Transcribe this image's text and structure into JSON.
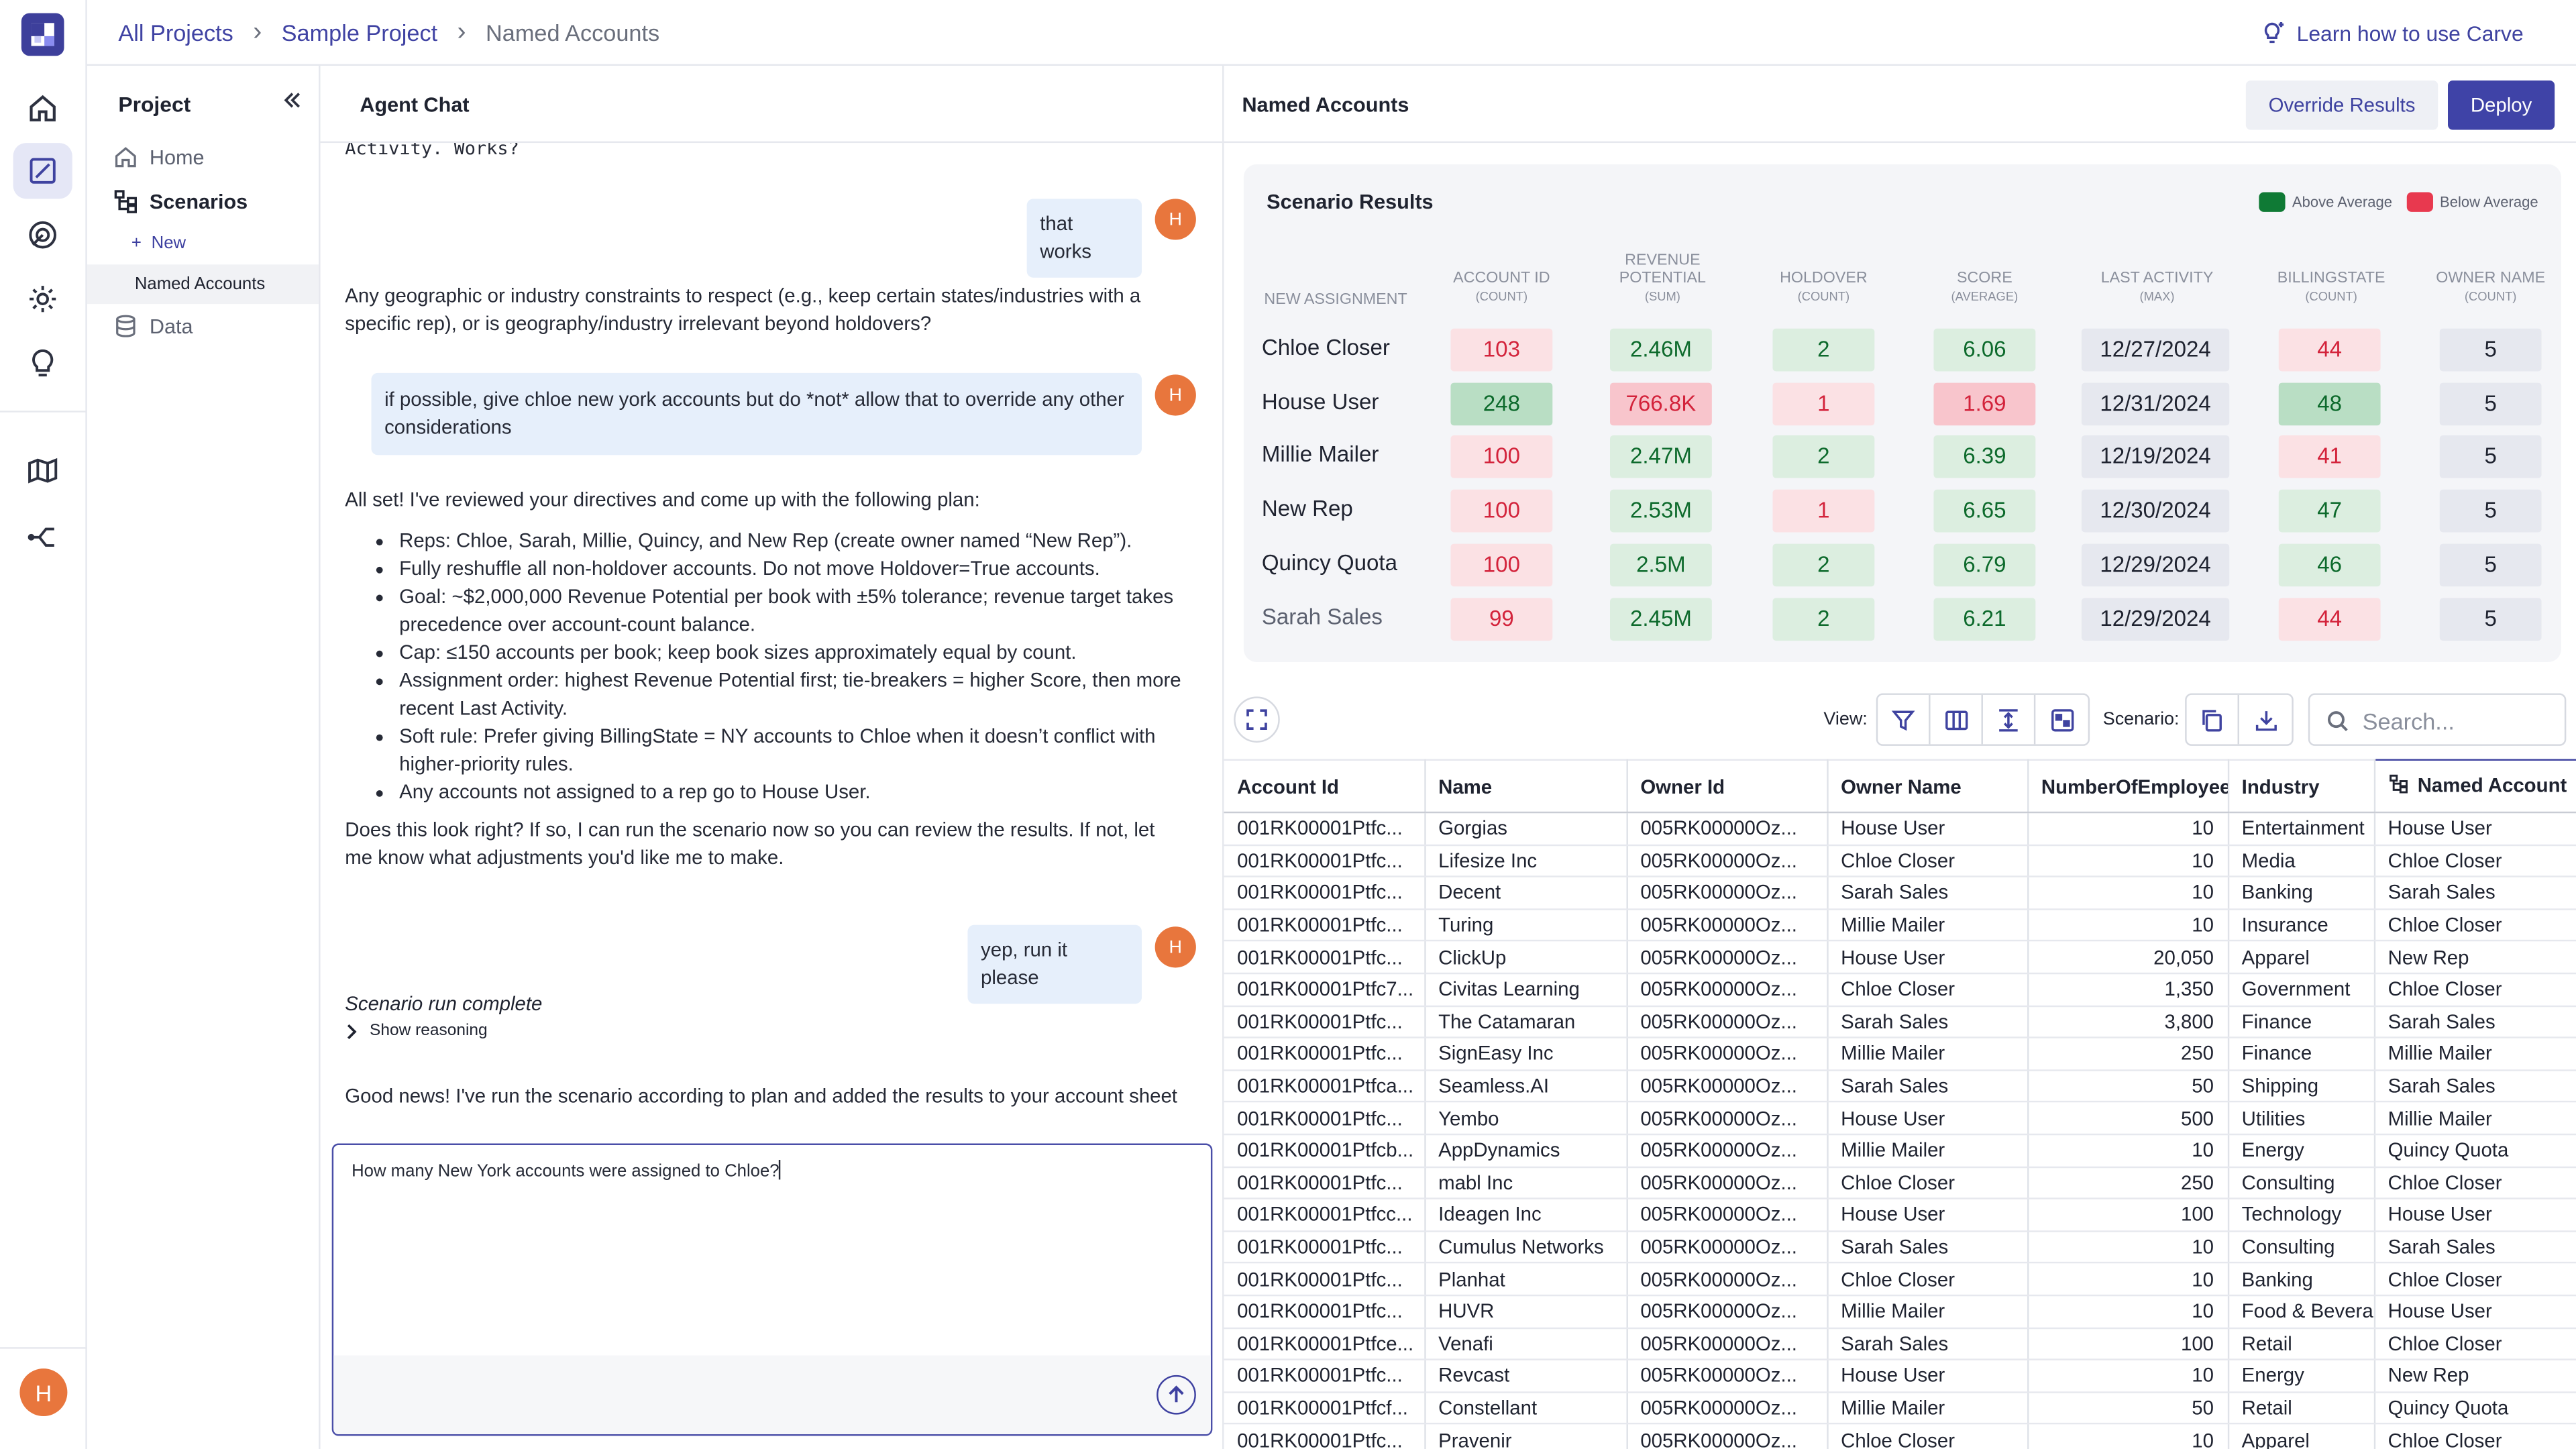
{
  "breadcrumb": [
    "All Projects",
    "Sample Project",
    "Named Accounts"
  ],
  "learn_link": "Learn how to use Carve",
  "user_initial": "H",
  "sidebar": {
    "title": "Project",
    "items": [
      {
        "label": "Home",
        "icon": "home-icon"
      },
      {
        "label": "Scenarios",
        "icon": "scenarios-icon"
      },
      {
        "label": "Data",
        "icon": "database-icon"
      }
    ],
    "new_label": "New",
    "sub_item": "Named Accounts"
  },
  "chat": {
    "title": "Agent Chat",
    "partial_top": "Activity. Works?",
    "user_msg_1": "that works",
    "ai_msg_1": "Any geographic or industry constraints to respect (e.g., keep certain states/industries with a specific rep), or is geography/industry irrelevant beyond holdovers?",
    "user_msg_2": "if possible, give chloe new york accounts but do *not* allow that to override any other considerations",
    "plan_intro": "All set! I've reviewed your directives and come up with the following plan:",
    "plan_items": [
      "Reps: Chloe, Sarah, Millie, Quincy, and New Rep (create owner named “New Rep”).",
      "Fully reshuffle all non-holdover accounts. Do not move Holdover=True accounts.",
      "Goal: ~$2,000,000 Revenue Potential per book with ±5% tolerance; revenue target takes precedence over account-count balance.",
      "Cap: ≤150 accounts per book; keep book sizes approximately equal by count.",
      "Assignment order: highest Revenue Potential first; tie-breakers = higher Score, then more recent Last Activity.",
      "Soft rule: Prefer giving BillingState = NY accounts to Chloe when it doesn’t conflict with higher-priority rules.",
      "Any accounts not assigned to a rep go to House User."
    ],
    "plan_question": "Does this look right? If so, I can run the scenario now so you can review the results. If not, let me know what adjustments you'd like me to make.",
    "user_msg_3": "yep, run it please",
    "run_status": "Scenario run complete",
    "show_reasoning": "Show reasoning",
    "final_msg": "Good news! I've run the scenario according to plan and added the results to your account sheet",
    "composer_value": "How many New York accounts were assigned to Chloe?"
  },
  "results": {
    "title": "Named Accounts",
    "override_label": "Override Results",
    "deploy_label": "Deploy",
    "summary_title": "Scenario Results",
    "legend": {
      "above": "Above Average",
      "below": "Below Average",
      "above_color": "#0f7a35",
      "below_color": "#e8394f"
    },
    "row_header": "New Assignment",
    "columns": [
      {
        "name": "Account ID",
        "agg": "(Count)"
      },
      {
        "name": "Revenue Potential",
        "agg": "(Sum)"
      },
      {
        "name": "Holdover",
        "agg": "(Count)"
      },
      {
        "name": "Score",
        "agg": "(Average)"
      },
      {
        "name": "Last Activity",
        "agg": "(Max)"
      },
      {
        "name": "BillingState",
        "agg": "(Count)"
      },
      {
        "name": "Owner Name",
        "agg": "(Count)"
      }
    ],
    "rows": [
      {
        "name": "Chloe Closer",
        "cells": [
          [
            "103",
            "r1"
          ],
          [
            "2.46M",
            "g1"
          ],
          [
            "2",
            "g1"
          ],
          [
            "6.06",
            "g1"
          ],
          [
            "12/27/2024",
            "n"
          ],
          [
            "44",
            "r1"
          ],
          [
            "5",
            "n"
          ]
        ]
      },
      {
        "name": "House User",
        "cells": [
          [
            "248",
            "g2"
          ],
          [
            "766.8K",
            "r2"
          ],
          [
            "1",
            "r1"
          ],
          [
            "1.69",
            "r2"
          ],
          [
            "12/31/2024",
            "n"
          ],
          [
            "48",
            "g2"
          ],
          [
            "5",
            "n"
          ]
        ]
      },
      {
        "name": "Millie Mailer",
        "cells": [
          [
            "100",
            "r1"
          ],
          [
            "2.47M",
            "g1"
          ],
          [
            "2",
            "g1"
          ],
          [
            "6.39",
            "g1"
          ],
          [
            "12/19/2024",
            "n"
          ],
          [
            "41",
            "r1"
          ],
          [
            "5",
            "n"
          ]
        ]
      },
      {
        "name": "New Rep",
        "cells": [
          [
            "100",
            "r1"
          ],
          [
            "2.53M",
            "g1"
          ],
          [
            "1",
            "r1"
          ],
          [
            "6.65",
            "g1"
          ],
          [
            "12/30/2024",
            "n"
          ],
          [
            "47",
            "g1"
          ],
          [
            "5",
            "n"
          ]
        ]
      },
      {
        "name": "Quincy Quota",
        "cells": [
          [
            "100",
            "r1"
          ],
          [
            "2.5M",
            "g1"
          ],
          [
            "2",
            "g1"
          ],
          [
            "6.79",
            "g1"
          ],
          [
            "12/29/2024",
            "n"
          ],
          [
            "46",
            "g1"
          ],
          [
            "5",
            "n"
          ]
        ]
      },
      {
        "name": "Sarah Sales",
        "cells": [
          [
            "99",
            "r1"
          ],
          [
            "2.45M",
            "g1"
          ],
          [
            "2",
            "g1"
          ],
          [
            "6.21",
            "g1"
          ],
          [
            "12/29/2024",
            "n"
          ],
          [
            "44",
            "r1"
          ],
          [
            "5",
            "n"
          ]
        ]
      }
    ],
    "toolbar": {
      "view_label": "View:",
      "scenario_label": "Scenario:",
      "search_placeholder": "Search..."
    },
    "table_headers": [
      "Account Id",
      "Name",
      "Owner Id",
      "Owner Name",
      "NumberOfEmployees",
      "Industry",
      "Named Account"
    ],
    "table_rows": [
      [
        "001RK00001Ptfc...",
        "Gorgias",
        "005RK00000Oz...",
        "House User",
        "10",
        "Entertainment",
        "House User"
      ],
      [
        "001RK00001Ptfc...",
        "Lifesize Inc",
        "005RK00000Oz...",
        "Chloe Closer",
        "10",
        "Media",
        "Chloe Closer"
      ],
      [
        "001RK00001Ptfc...",
        "Decent",
        "005RK00000Oz...",
        "Sarah Sales",
        "10",
        "Banking",
        "Sarah Sales"
      ],
      [
        "001RK00001Ptfc...",
        "Turing",
        "005RK00000Oz...",
        "Millie Mailer",
        "10",
        "Insurance",
        "Chloe Closer"
      ],
      [
        "001RK00001Ptfc...",
        "ClickUp",
        "005RK00000Oz...",
        "House User",
        "20,050",
        "Apparel",
        "New Rep"
      ],
      [
        "001RK00001Ptfc7...",
        "Civitas Learning",
        "005RK00000Oz...",
        "Chloe Closer",
        "1,350",
        "Government",
        "Chloe Closer"
      ],
      [
        "001RK00001Ptfc...",
        "The Catamaran",
        "005RK00000Oz...",
        "Sarah Sales",
        "3,800",
        "Finance",
        "Sarah Sales"
      ],
      [
        "001RK00001Ptfc...",
        "SignEasy Inc",
        "005RK00000Oz...",
        "Millie Mailer",
        "250",
        "Finance",
        "Millie Mailer"
      ],
      [
        "001RK00001Ptfca...",
        "Seamless.AI",
        "005RK00000Oz...",
        "Sarah Sales",
        "50",
        "Shipping",
        "Sarah Sales"
      ],
      [
        "001RK00001Ptfc...",
        "Yembo",
        "005RK00000Oz...",
        "House User",
        "500",
        "Utilities",
        "Millie Mailer"
      ],
      [
        "001RK00001Ptfcb...",
        "AppDynamics",
        "005RK00000Oz...",
        "Millie Mailer",
        "10",
        "Energy",
        "Quincy Quota"
      ],
      [
        "001RK00001Ptfc...",
        "mabl Inc",
        "005RK00000Oz...",
        "Chloe Closer",
        "250",
        "Consulting",
        "Chloe Closer"
      ],
      [
        "001RK00001Ptfcc...",
        "Ideagen Inc",
        "005RK00000Oz...",
        "House User",
        "100",
        "Technology",
        "House User"
      ],
      [
        "001RK00001Ptfc...",
        "Cumulus Networks",
        "005RK00000Oz...",
        "Sarah Sales",
        "10",
        "Consulting",
        "Sarah Sales"
      ],
      [
        "001RK00001Ptfc...",
        "Planhat",
        "005RK00000Oz...",
        "Chloe Closer",
        "10",
        "Banking",
        "Chloe Closer"
      ],
      [
        "001RK00001Ptfc...",
        "HUVR",
        "005RK00000Oz...",
        "Millie Mailer",
        "10",
        "Food & Beverage",
        "House User"
      ],
      [
        "001RK00001Ptfce...",
        "Venafi",
        "005RK00000Oz...",
        "Sarah Sales",
        "100",
        "Retail",
        "Chloe Closer"
      ],
      [
        "001RK00001Ptfc...",
        "Revcast",
        "005RK00000Oz...",
        "House User",
        "10",
        "Energy",
        "New Rep"
      ],
      [
        "001RK00001Ptfcf...",
        "Constellant",
        "005RK00000Oz...",
        "Millie Mailer",
        "50",
        "Retail",
        "Quincy Quota"
      ],
      [
        "001RK00001Ptfc...",
        "Pravenir",
        "005RK00000Oz...",
        "Chloe Closer",
        "10",
        "Apparel",
        "Chloe Closer"
      ]
    ]
  }
}
